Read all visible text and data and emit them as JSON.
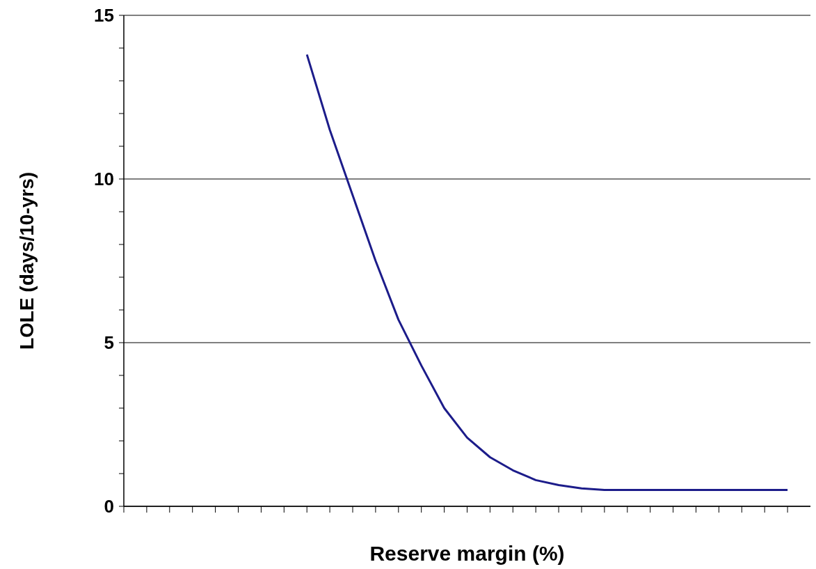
{
  "chart_data": {
    "type": "line",
    "xlabel": "Reserve margin (%)",
    "ylabel": "LOLE (days/10-yrs)",
    "categories": [
      null,
      null,
      null,
      null,
      null,
      null,
      null,
      null,
      null,
      null,
      null,
      null,
      null,
      null,
      null,
      null,
      null,
      null,
      null,
      null,
      null,
      null,
      null,
      null,
      null,
      null,
      null,
      null,
      null,
      null
    ],
    "series": [
      {
        "color": "#1c1c8a",
        "values": [
          null,
          null,
          null,
          null,
          null,
          null,
          null,
          null,
          13.8,
          11.5,
          9.5,
          7.5,
          5.7,
          4.3,
          3.0,
          2.1,
          1.5,
          1.1,
          0.8,
          0.65,
          0.55,
          0.5,
          0.5,
          0.5,
          0.5,
          0.5,
          0.5,
          0.5,
          0.5,
          0.5
        ]
      }
    ],
    "ylim": [
      0,
      15
    ],
    "yticks": [
      0,
      {
        "value": 1,
        "label": null
      },
      {
        "value": 2,
        "label": null
      },
      {
        "value": 3,
        "label": null
      },
      {
        "value": 4,
        "label": null
      },
      5,
      {
        "value": 6,
        "label": null
      },
      {
        "value": 7,
        "label": null
      },
      {
        "value": 8,
        "label": null
      },
      {
        "value": 9,
        "label": null
      },
      10,
      {
        "value": 11,
        "label": null
      },
      {
        "value": 12,
        "label": null
      },
      {
        "value": 13,
        "label": null
      },
      {
        "value": 14,
        "label": null
      },
      15
    ],
    "grid": "y",
    "marker": "none",
    "line_style": "solid"
  }
}
